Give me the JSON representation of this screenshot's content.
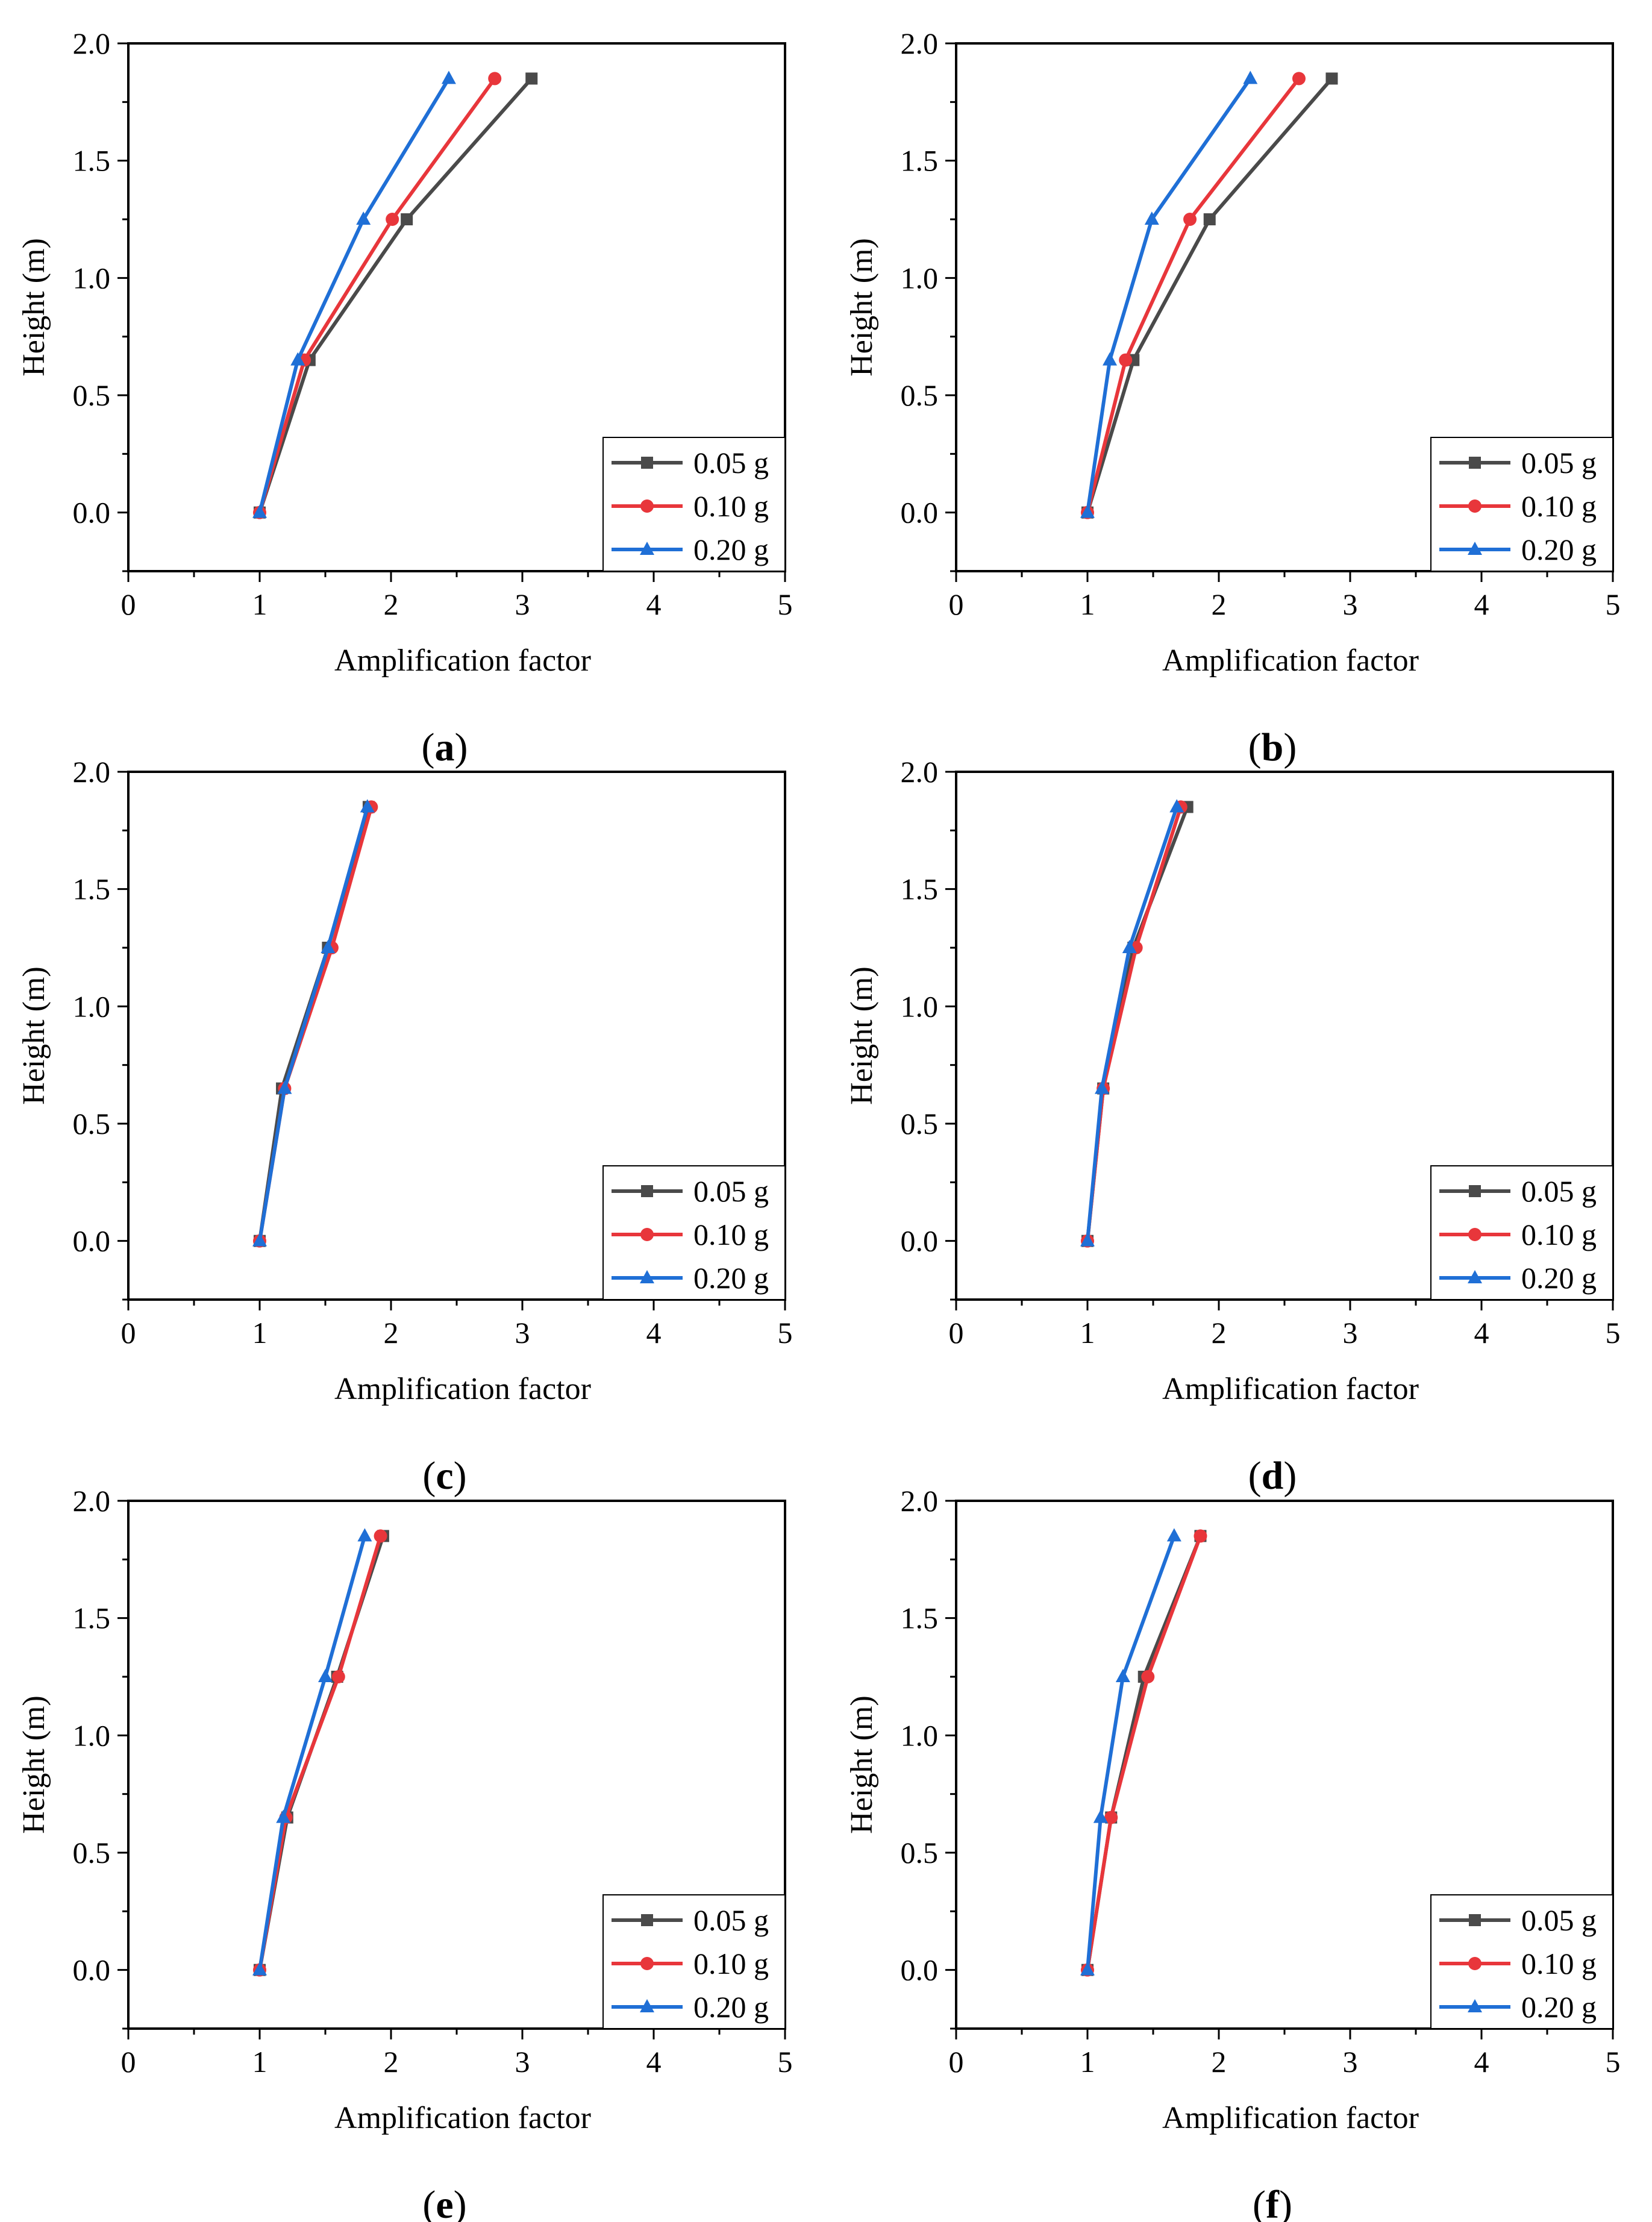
{
  "figure": {
    "panel_labels": [
      "a",
      "b",
      "c",
      "d",
      "e",
      "f"
    ]
  },
  "chart_data": [
    {
      "type": "line",
      "panel": "a",
      "xlabel": "Amplification factor",
      "ylabel": "Height (m)",
      "xlim": [
        0,
        5
      ],
      "ylim": [
        -0.25,
        2.0
      ],
      "xticks": [
        "0",
        "1",
        "2",
        "3",
        "4",
        "5"
      ],
      "yticks": [
        "0.0",
        "0.5",
        "1.0",
        "1.5",
        "2.0"
      ],
      "legend_position": "bottom-right",
      "y": [
        0.0,
        0.65,
        1.25,
        1.85
      ],
      "series": [
        {
          "name": "0.05 g",
          "color": "#4a4a4a",
          "marker": "square",
          "x": [
            1.0,
            1.38,
            2.12,
            3.07
          ]
        },
        {
          "name": "0.10 g",
          "color": "#e8363b",
          "marker": "circle",
          "x": [
            1.0,
            1.34,
            2.01,
            2.79
          ]
        },
        {
          "name": "0.20 g",
          "color": "#1f6fd6",
          "marker": "triangle",
          "x": [
            1.0,
            1.29,
            1.79,
            2.44
          ]
        }
      ]
    },
    {
      "type": "line",
      "panel": "b",
      "xlabel": "Amplification factor",
      "ylabel": "Height (m)",
      "xlim": [
        0,
        5
      ],
      "ylim": [
        -0.25,
        2.0
      ],
      "xticks": [
        "0",
        "1",
        "2",
        "3",
        "4",
        "5"
      ],
      "yticks": [
        "0.0",
        "0.5",
        "1.0",
        "1.5",
        "2.0"
      ],
      "legend_position": "bottom-right",
      "y": [
        0.0,
        0.65,
        1.25,
        1.85
      ],
      "series": [
        {
          "name": "0.05 g",
          "color": "#4a4a4a",
          "marker": "square",
          "x": [
            1.0,
            1.35,
            1.93,
            2.86
          ]
        },
        {
          "name": "0.10 g",
          "color": "#e8363b",
          "marker": "circle",
          "x": [
            1.0,
            1.29,
            1.78,
            2.61
          ]
        },
        {
          "name": "0.20 g",
          "color": "#1f6fd6",
          "marker": "triangle",
          "x": [
            1.0,
            1.17,
            1.49,
            2.24
          ]
        }
      ]
    },
    {
      "type": "line",
      "panel": "c",
      "xlabel": "Amplification factor",
      "ylabel": "Height (m)",
      "xlim": [
        0,
        5
      ],
      "ylim": [
        -0.25,
        2.0
      ],
      "xticks": [
        "0",
        "1",
        "2",
        "3",
        "4",
        "5"
      ],
      "yticks": [
        "0.0",
        "0.5",
        "1.0",
        "1.5",
        "2.0"
      ],
      "legend_position": "bottom-right",
      "y": [
        0.0,
        0.65,
        1.25,
        1.85
      ],
      "series": [
        {
          "name": "0.05 g",
          "color": "#4a4a4a",
          "marker": "square",
          "x": [
            1.0,
            1.17,
            1.52,
            1.83
          ]
        },
        {
          "name": "0.10 g",
          "color": "#e8363b",
          "marker": "circle",
          "x": [
            1.0,
            1.19,
            1.55,
            1.85
          ]
        },
        {
          "name": "0.20 g",
          "color": "#1f6fd6",
          "marker": "triangle",
          "x": [
            1.0,
            1.19,
            1.52,
            1.82
          ]
        }
      ]
    },
    {
      "type": "line",
      "panel": "d",
      "xlabel": "Amplification factor",
      "ylabel": "Height (m)",
      "xlim": [
        0,
        5
      ],
      "ylim": [
        -0.25,
        2.0
      ],
      "xticks": [
        "0",
        "1",
        "2",
        "3",
        "4",
        "5"
      ],
      "yticks": [
        "0.0",
        "0.5",
        "1.0",
        "1.5",
        "2.0"
      ],
      "legend_position": "bottom-right",
      "y": [
        0.0,
        0.65,
        1.25,
        1.85
      ],
      "series": [
        {
          "name": "0.05 g",
          "color": "#4a4a4a",
          "marker": "square",
          "x": [
            1.0,
            1.12,
            1.35,
            1.76
          ]
        },
        {
          "name": "0.10 g",
          "color": "#e8363b",
          "marker": "circle",
          "x": [
            1.0,
            1.12,
            1.37,
            1.71
          ]
        },
        {
          "name": "0.20 g",
          "color": "#1f6fd6",
          "marker": "triangle",
          "x": [
            1.0,
            1.11,
            1.32,
            1.68
          ]
        }
      ]
    },
    {
      "type": "line",
      "panel": "e",
      "xlabel": "Amplification factor",
      "ylabel": "Height (m)",
      "xlim": [
        0,
        5
      ],
      "ylim": [
        -0.25,
        2.0
      ],
      "xticks": [
        "0",
        "1",
        "2",
        "3",
        "4",
        "5"
      ],
      "yticks": [
        "0.0",
        "0.5",
        "1.0",
        "1.5",
        "2.0"
      ],
      "legend_position": "bottom-right",
      "y": [
        0.0,
        0.65,
        1.25,
        1.85
      ],
      "series": [
        {
          "name": "0.05 g",
          "color": "#4a4a4a",
          "marker": "square",
          "x": [
            1.0,
            1.21,
            1.59,
            1.94
          ]
        },
        {
          "name": "0.10 g",
          "color": "#e8363b",
          "marker": "circle",
          "x": [
            1.0,
            1.2,
            1.6,
            1.92
          ]
        },
        {
          "name": "0.20 g",
          "color": "#1f6fd6",
          "marker": "triangle",
          "x": [
            1.0,
            1.18,
            1.5,
            1.8
          ]
        }
      ]
    },
    {
      "type": "line",
      "panel": "f",
      "xlabel": "Amplification factor",
      "ylabel": "Height (m)",
      "xlim": [
        0,
        5
      ],
      "ylim": [
        -0.25,
        2.0
      ],
      "xticks": [
        "0",
        "1",
        "2",
        "3",
        "4",
        "5"
      ],
      "yticks": [
        "0.0",
        "0.5",
        "1.0",
        "1.5",
        "2.0"
      ],
      "legend_position": "bottom-right",
      "y": [
        0.0,
        0.65,
        1.25,
        1.85
      ],
      "series": [
        {
          "name": "0.05 g",
          "color": "#4a4a4a",
          "marker": "square",
          "x": [
            1.0,
            1.18,
            1.43,
            1.86
          ]
        },
        {
          "name": "0.10 g",
          "color": "#e8363b",
          "marker": "circle",
          "x": [
            1.0,
            1.18,
            1.46,
            1.86
          ]
        },
        {
          "name": "0.20 g",
          "color": "#1f6fd6",
          "marker": "triangle",
          "x": [
            1.0,
            1.1,
            1.27,
            1.66
          ]
        }
      ]
    }
  ]
}
